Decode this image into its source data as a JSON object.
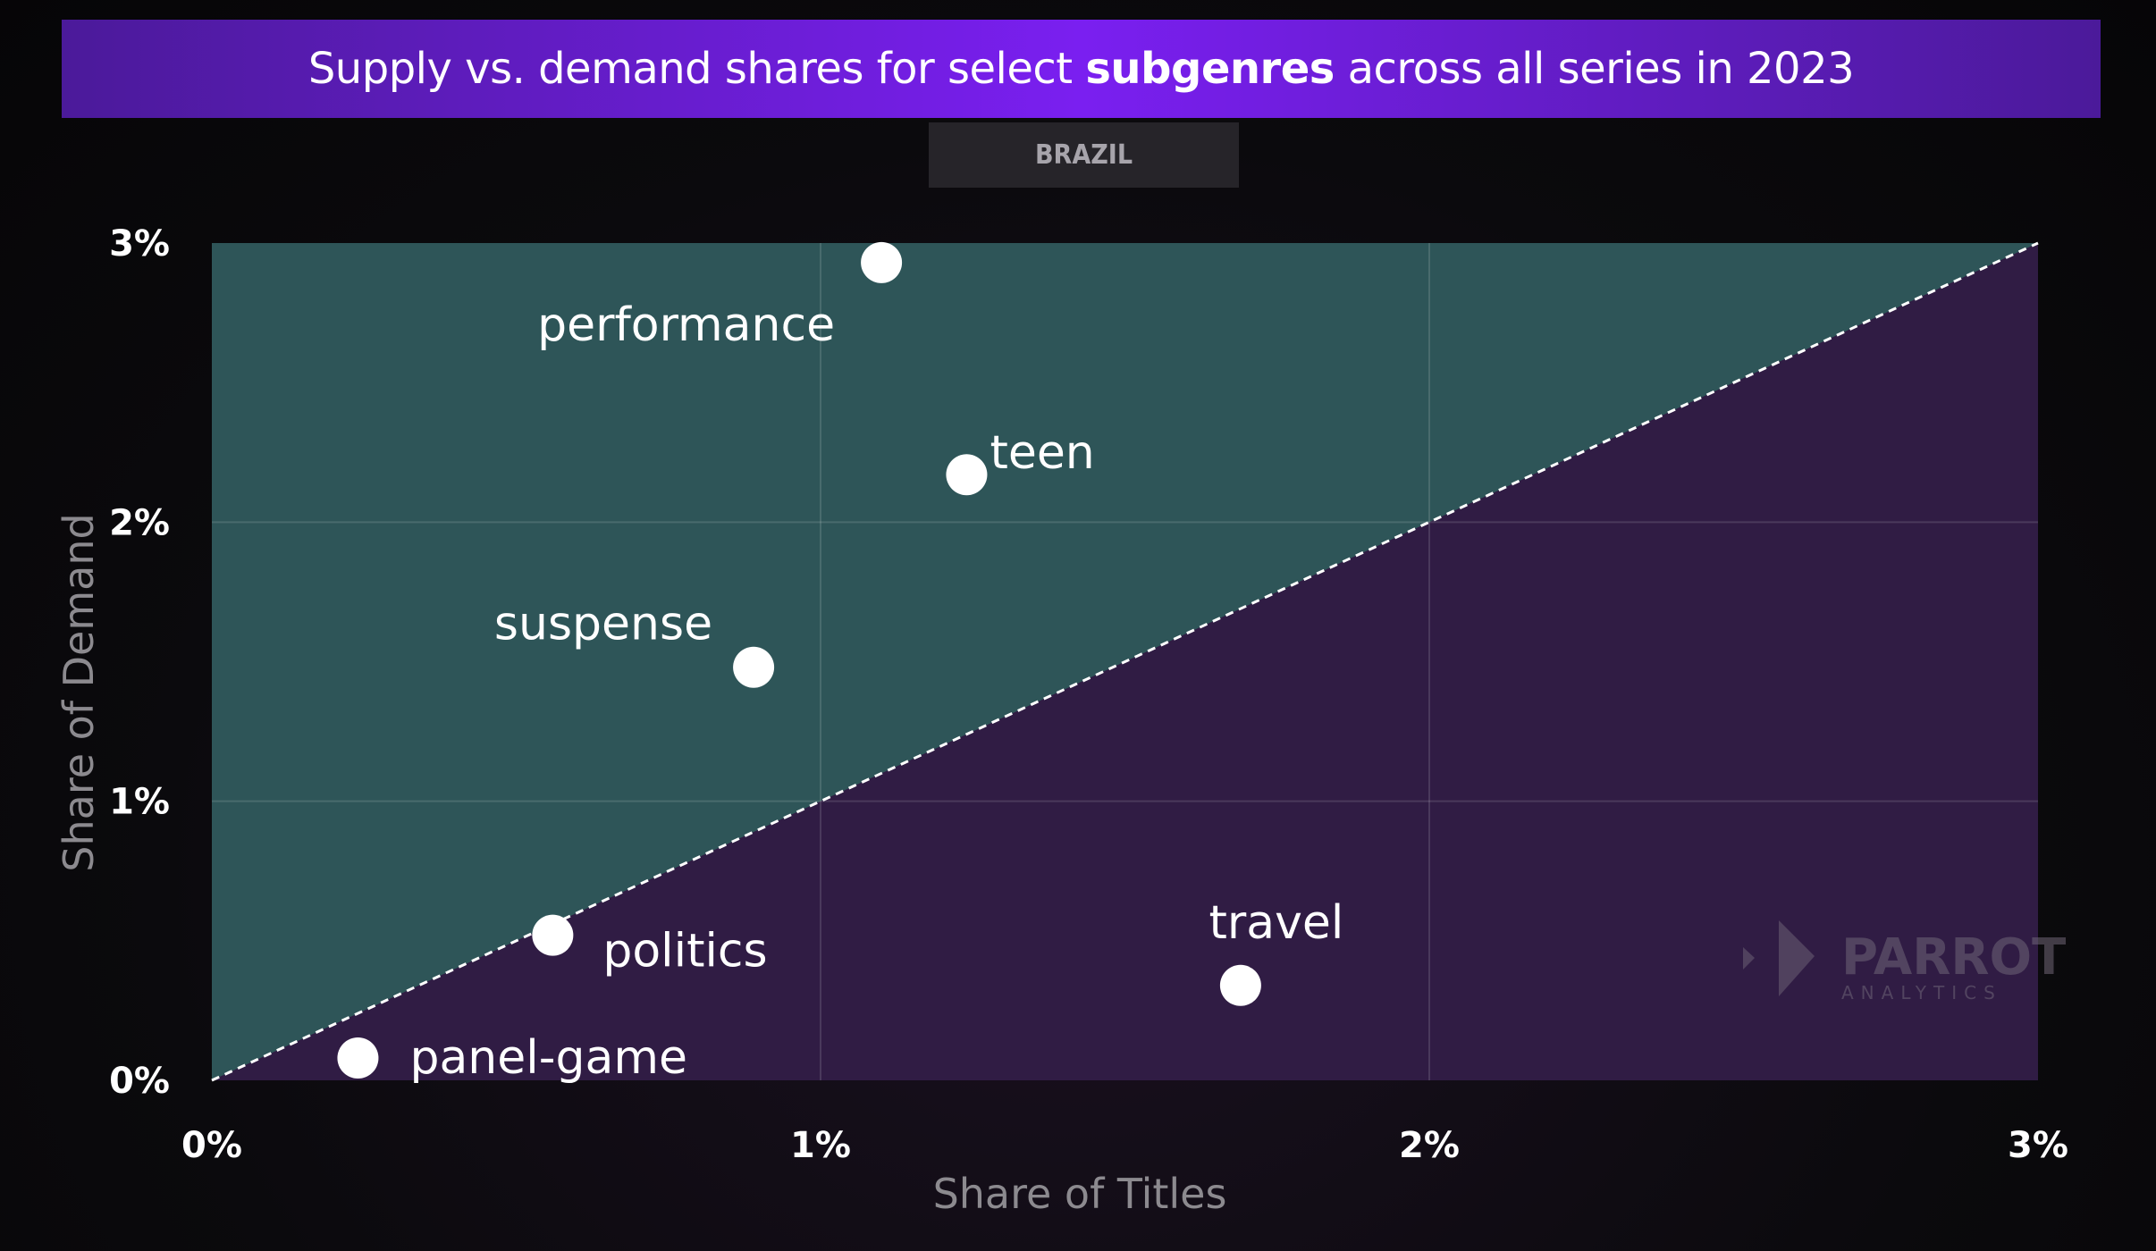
{
  "title": {
    "pre": "Supply vs. demand shares for select ",
    "bold": "subgenres",
    "post": " across all series in 2023"
  },
  "region": "BRAZIL",
  "watermark": {
    "brand": "PARROT",
    "sub": "ANALYTICS"
  },
  "colors": {
    "above_region": "#2e5558",
    "below_region": "#301c44",
    "title_bar": "#7a1ff0",
    "point": "#ffffff"
  },
  "chart_data": {
    "type": "scatter",
    "xlabel": "Share of Titles",
    "ylabel": "Share of Demand",
    "xlim": [
      0,
      3
    ],
    "ylim": [
      0,
      3
    ],
    "unit": "%",
    "x_ticks": [
      "0%",
      "1%",
      "2%",
      "3%"
    ],
    "y_ticks": [
      "0%",
      "1%",
      "2%",
      "3%"
    ],
    "grid": true,
    "reference_line": "y = x (dashed)",
    "points": [
      {
        "label": "performance",
        "x": 1.1,
        "y": 2.93
      },
      {
        "label": "teen",
        "x": 1.24,
        "y": 2.17
      },
      {
        "label": "suspense",
        "x": 0.89,
        "y": 1.48
      },
      {
        "label": "politics",
        "x": 0.56,
        "y": 0.52
      },
      {
        "label": "panel-game",
        "x": 0.24,
        "y": 0.08
      },
      {
        "label": "travel",
        "x": 1.69,
        "y": 0.34
      }
    ]
  }
}
